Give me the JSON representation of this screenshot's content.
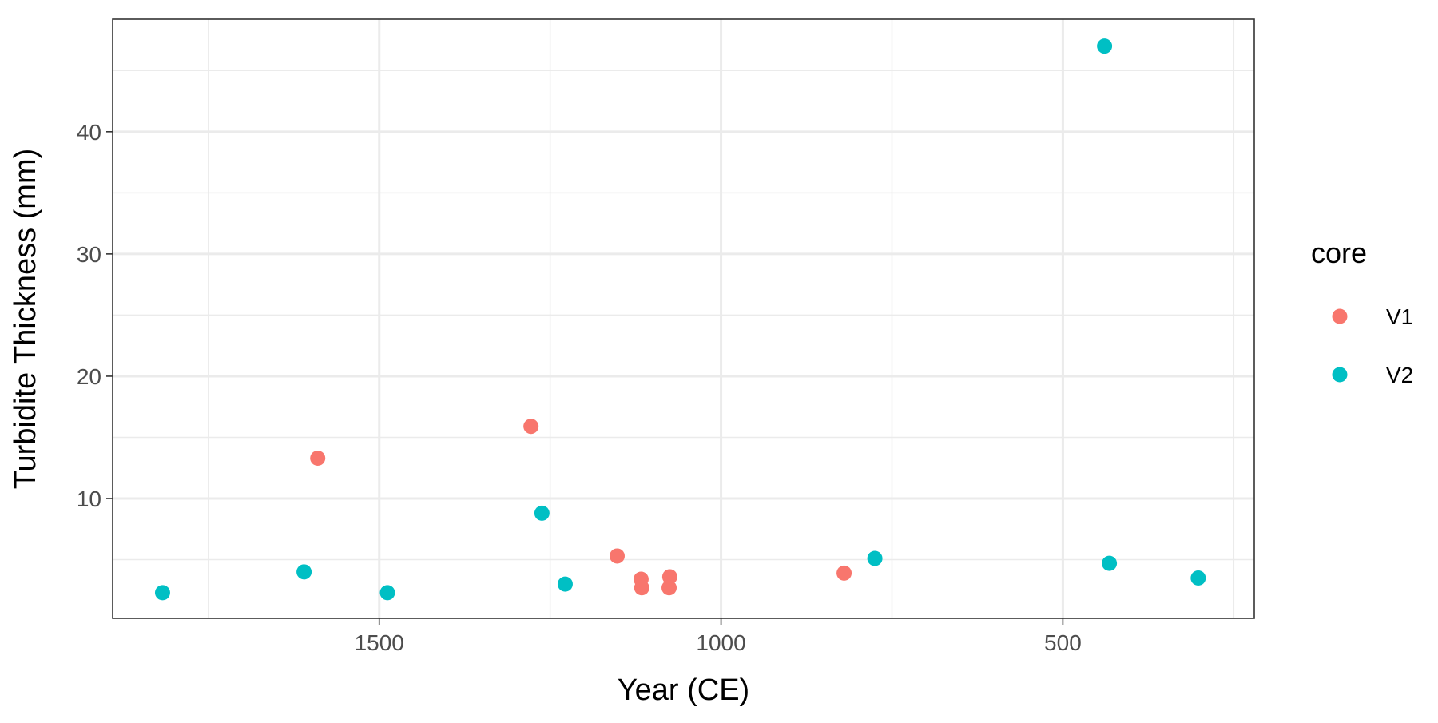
{
  "chart_data": {
    "type": "scatter",
    "title": "",
    "xlabel": "Year (CE)",
    "ylabel": "Turbidite Thickness (mm)",
    "x_reversed": true,
    "xlim": [
      1890,
      220
    ],
    "ylim": [
      0.2,
      49.2
    ],
    "x_major_ticks": [
      1500,
      1000,
      500
    ],
    "x_minor_ticks": [
      1750,
      1250,
      750,
      250
    ],
    "y_major_ticks": [
      10,
      20,
      30,
      40
    ],
    "y_minor_ticks": [
      5,
      15,
      25,
      35,
      45
    ],
    "x_tick_labels": [
      "1500",
      "1000",
      "500"
    ],
    "y_tick_labels": [
      "10",
      "20",
      "30",
      "40"
    ],
    "grid": true,
    "legend": {
      "title": "core",
      "placement": "right"
    },
    "series": [
      {
        "name": "V1",
        "color": "#F8766D",
        "points": [
          {
            "x": 1590,
            "y": 13.3
          },
          {
            "x": 1278,
            "y": 15.9
          },
          {
            "x": 1152,
            "y": 5.3
          },
          {
            "x": 1117,
            "y": 3.4
          },
          {
            "x": 1116,
            "y": 2.7
          },
          {
            "x": 1075,
            "y": 3.6
          },
          {
            "x": 1076,
            "y": 2.7
          },
          {
            "x": 820,
            "y": 3.9
          }
        ]
      },
      {
        "name": "V2",
        "color": "#00BFC4",
        "points": [
          {
            "x": 1817,
            "y": 2.3
          },
          {
            "x": 1610,
            "y": 4.0
          },
          {
            "x": 1488,
            "y": 2.3
          },
          {
            "x": 1262,
            "y": 8.8
          },
          {
            "x": 1228,
            "y": 3.0
          },
          {
            "x": 775,
            "y": 5.1
          },
          {
            "x": 439,
            "y": 47.0
          },
          {
            "x": 432,
            "y": 4.7
          },
          {
            "x": 302,
            "y": 3.5
          }
        ]
      }
    ]
  }
}
